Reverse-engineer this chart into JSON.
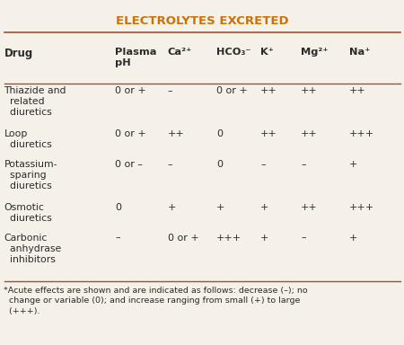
{
  "title": "ELECTROLYTES EXCRETED",
  "title_color": "#C8720A",
  "bg_color": "#F5F0E8",
  "col_headers": [
    "Plasma\npH",
    "Ca²⁺",
    "HCO₃⁻",
    "K⁺",
    "Mg²⁺",
    "Na⁺"
  ],
  "drug_col_header": "Drug",
  "drugs": [
    [
      "Thiazide and\n  related\n  diuretics",
      "0 or +",
      "–",
      "0 or +",
      "++",
      "++",
      "++"
    ],
    [
      "Loop\n  diuretics",
      "0 or +",
      "++",
      "0",
      "++",
      "++",
      "+++"
    ],
    [
      "Potassium-\n  sparing\n  diuretics",
      "0 or –",
      "–",
      "0",
      "–",
      "–",
      "+"
    ],
    [
      "Osmotic\n  diuretics",
      "0",
      "+",
      "+",
      "+",
      "++",
      "+++"
    ],
    [
      "Carbonic\n  anhydrase\n  inhibitors",
      "–",
      "0 or +",
      "+++",
      "+",
      "–",
      "+"
    ]
  ],
  "footnote": "*Acute effects are shown and are indicated as follows: decrease (–); no\n  change or variable (0); and increase ranging from small (+) to large\n  (+++).",
  "header_line_color": "#A0522D",
  "text_color": "#2B2B2B",
  "footer_line_color": "#A0522D"
}
